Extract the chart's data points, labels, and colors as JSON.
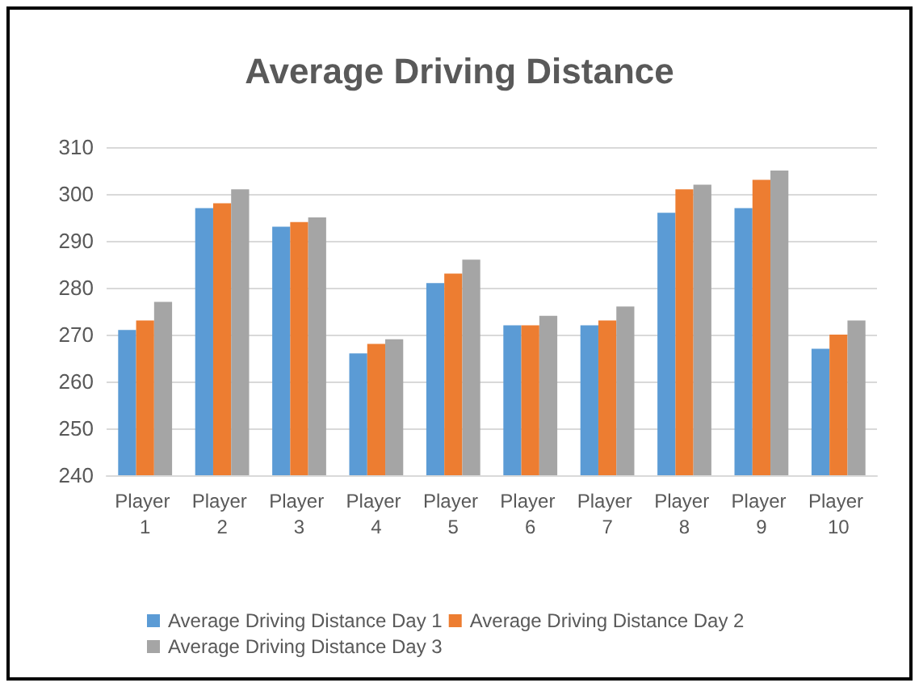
{
  "chart_data": {
    "type": "bar",
    "title": "Average Driving Distance",
    "categories": [
      "Player 1",
      "Player 2",
      "Player 3",
      "Player 4",
      "Player 5",
      "Player 6",
      "Player 7",
      "Player 8",
      "Player 9",
      "Player 10"
    ],
    "series": [
      {
        "name": "Average Driving Distance Day 1",
        "color": "#5b9bd5",
        "values": [
          271,
          297,
          293,
          266,
          281,
          272,
          272,
          296,
          297,
          267
        ]
      },
      {
        "name": "Average Driving Distance Day 2",
        "color": "#ed7d31",
        "values": [
          273,
          298,
          294,
          268,
          283,
          272,
          273,
          301,
          303,
          270
        ]
      },
      {
        "name": "Average Driving Distance Day 3",
        "color": "#a5a5a5",
        "values": [
          277,
          301,
          295,
          269,
          286,
          274,
          276,
          302,
          305,
          273
        ]
      }
    ],
    "ylim": [
      240,
      310
    ],
    "yticks": [
      240,
      250,
      260,
      270,
      280,
      290,
      300,
      310
    ],
    "grid": "y",
    "legend": "bottom"
  }
}
